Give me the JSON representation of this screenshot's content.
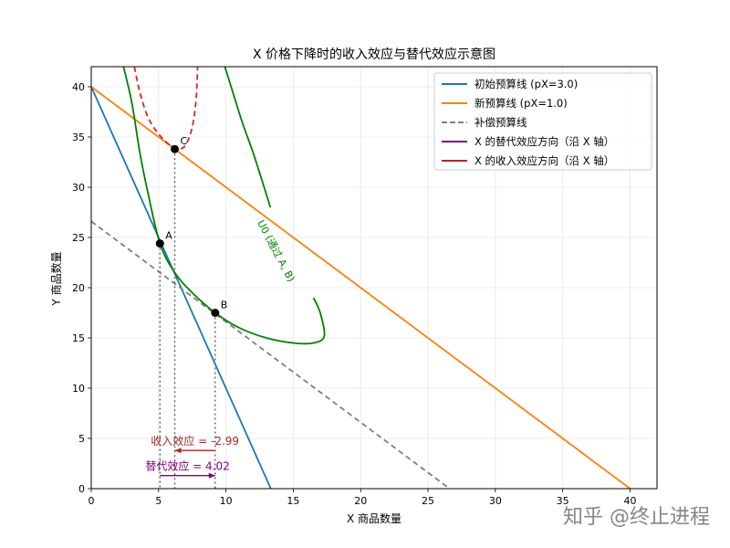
{
  "chart_data": {
    "type": "line",
    "title": "X 价格下降时的收入效应与替代效应示意图",
    "xlabel": "X 商品数量",
    "ylabel": "Y 商品数量",
    "xlim": [
      0,
      42
    ],
    "ylim": [
      0,
      42
    ],
    "xticks": [
      0,
      5,
      10,
      15,
      20,
      25,
      30,
      35,
      40
    ],
    "yticks": [
      0,
      5,
      10,
      15,
      20,
      25,
      30,
      35,
      40
    ],
    "grid": true,
    "legend_position": "top-right",
    "legend": [
      {
        "label": "初始预算线 (pX=3.0)",
        "style": "solid",
        "color": "#1f77b4"
      },
      {
        "label": "新预算线 (pX=1.0)",
        "style": "solid",
        "color": "#ff7f0e"
      },
      {
        "label": "补偿预算线",
        "style": "dashed",
        "color": "#7f7f7f"
      },
      {
        "label": "X 的替代效应方向（沿 X 轴）",
        "style": "solid",
        "color": "#800080"
      },
      {
        "label": "X 的收入效应方向（沿 X 轴）",
        "style": "solid",
        "color": "#a52a2a"
      }
    ],
    "lines": [
      {
        "name": "初始预算线 (pX=3.0)",
        "color": "#1f77b4",
        "dash": false,
        "points": [
          [
            0,
            40
          ],
          [
            13.33,
            0
          ]
        ]
      },
      {
        "name": "新预算线 (pX=1.0)",
        "color": "#ff7f0e",
        "dash": false,
        "points": [
          [
            0,
            40
          ],
          [
            40,
            0
          ]
        ]
      },
      {
        "name": "补偿预算线",
        "color": "#7f7f7f",
        "dash": true,
        "points": [
          [
            0,
            26.6
          ],
          [
            26.6,
            0
          ]
        ]
      }
    ],
    "curves": [
      {
        "name": "U0",
        "color": "#008000",
        "dash": false,
        "points": [
          [
            2.3,
            42.5
          ],
          [
            3.0,
            38.5
          ],
          [
            3.6,
            33.5
          ],
          [
            4.2,
            29.5
          ],
          [
            5.1,
            24.4
          ],
          [
            6.2,
            21.5
          ],
          [
            7.5,
            19.5
          ],
          [
            9.2,
            17.5
          ],
          [
            11.0,
            16.0
          ],
          [
            13.0,
            15.0
          ],
          [
            15.0,
            14.5
          ],
          [
            16.5,
            14.5
          ],
          [
            17.3,
            15.2
          ],
          [
            17.0,
            17.5
          ],
          [
            16.5,
            19.0
          ]
        ]
      },
      {
        "name": "U0-upper",
        "color": "#008000",
        "dash": false,
        "points": [
          [
            9.8,
            42.5
          ],
          [
            10.5,
            39.5
          ],
          [
            11.2,
            36.5
          ],
          [
            12.0,
            33.5
          ],
          [
            12.6,
            31.0
          ],
          [
            13.3,
            28.0
          ]
        ]
      },
      {
        "name": "U1",
        "color": "#d62728",
        "dash": true,
        "points": [
          [
            3.2,
            42.0
          ],
          [
            3.6,
            39.5
          ],
          [
            4.2,
            37.0
          ],
          [
            5.0,
            35.3
          ],
          [
            6.0,
            34.0
          ],
          [
            6.5,
            33.8
          ],
          [
            7.0,
            34.2
          ],
          [
            7.5,
            36.0
          ],
          [
            7.8,
            39.0
          ],
          [
            7.9,
            42.5
          ]
        ]
      }
    ],
    "points": [
      {
        "label": "A",
        "x": 5.1,
        "y": 24.4
      },
      {
        "label": "B",
        "x": 9.2,
        "y": 17.5
      },
      {
        "label": "C",
        "x": 6.2,
        "y": 33.8
      }
    ],
    "curve_label": {
      "text": "U0 (通过 A, B)",
      "x": 13.5,
      "y": 23.5,
      "color": "#008000"
    },
    "effects": [
      {
        "label": "替代效应 = 4.02",
        "from": 5.1,
        "to": 9.2,
        "y": 1.3,
        "color": "#800080"
      },
      {
        "label": "收入效应 = -2.99",
        "from": 9.2,
        "to": 6.2,
        "y": 3.8,
        "color": "#a52a2a"
      }
    ]
  },
  "watermark": "知乎 @终止进程"
}
